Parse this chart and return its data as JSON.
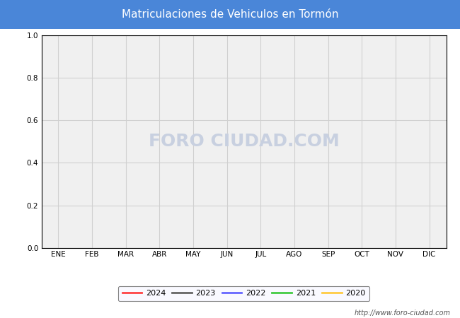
{
  "title": "Matriculaciones de Vehiculos en Tormón",
  "title_bg_color": "#4a86d8",
  "title_text_color": "#ffffff",
  "months": [
    "ENE",
    "FEB",
    "MAR",
    "ABR",
    "MAY",
    "JUN",
    "JUL",
    "AGO",
    "SEP",
    "OCT",
    "NOV",
    "DIC"
  ],
  "ylim": [
    0.0,
    1.0
  ],
  "yticks": [
    0.0,
    0.2,
    0.4,
    0.6,
    0.8,
    1.0
  ],
  "series": [
    {
      "year": "2024",
      "color": "#ff4444",
      "linestyle": "-"
    },
    {
      "year": "2023",
      "color": "#666666",
      "linestyle": "-"
    },
    {
      "year": "2022",
      "color": "#6666ff",
      "linestyle": "-"
    },
    {
      "year": "2021",
      "color": "#44cc44",
      "linestyle": "-"
    },
    {
      "year": "2020",
      "color": "#ffcc44",
      "linestyle": "-"
    }
  ],
  "plot_bg_color": "#f0f0f0",
  "grid_color": "#d0d0d0",
  "watermark": "FORO CIUDAD.COM",
  "watermark_color": "#c8d0e0",
  "url_text": "http://www.foro-ciudad.com",
  "legend_bg_color": "#f8f8ff",
  "legend_border_color": "#666666",
  "fig_bg_color": "#ffffff",
  "tick_color": "#000000",
  "spine_color": "#000000"
}
